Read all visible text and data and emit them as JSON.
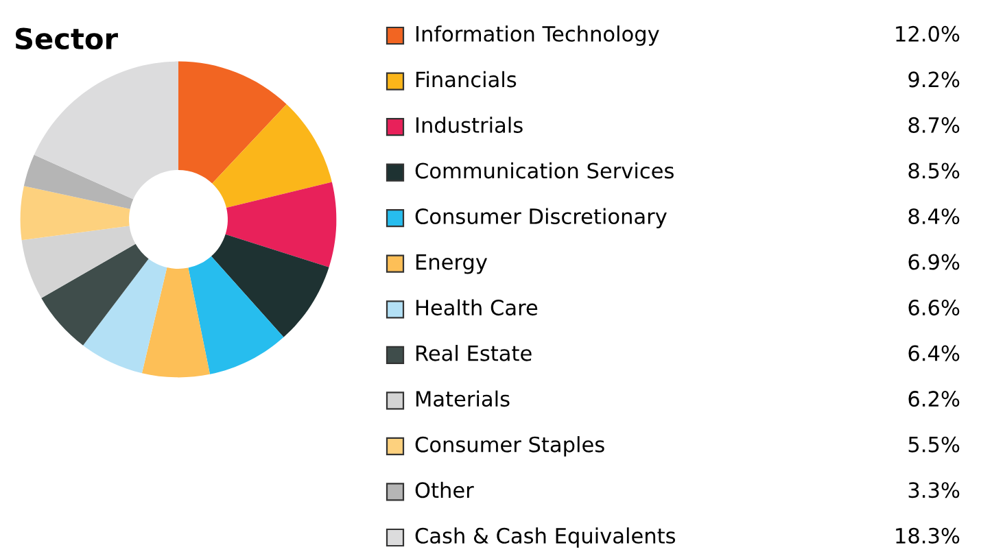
{
  "chart_data": {
    "type": "donut",
    "title": "Sector",
    "categories": [
      "Information Technology",
      "Financials",
      "Industrials",
      "Communication Services",
      "Consumer Discretionary",
      "Energy",
      "Health Care",
      "Real Estate",
      "Materials",
      "Consumer Staples",
      "Other",
      "Cash & Cash Equivalents"
    ],
    "values": [
      12.0,
      9.2,
      8.7,
      8.5,
      8.4,
      6.9,
      6.6,
      6.4,
      6.2,
      5.5,
      3.3,
      18.3
    ],
    "value_labels": [
      "12.0%",
      "9.2%",
      "8.7%",
      "8.5%",
      "8.4%",
      "6.9%",
      "6.6%",
      "6.4%",
      "6.2%",
      "5.5%",
      "3.3%",
      "18.3%"
    ],
    "colors": [
      "#f26522",
      "#fbb61a",
      "#e8215a",
      "#1e3232",
      "#27bdee",
      "#fdbf57",
      "#b3e0f5",
      "#3f4d4b",
      "#d4d4d4",
      "#fdd17e",
      "#b5b5b5",
      "#dcdcdd"
    ],
    "legend": "right"
  }
}
